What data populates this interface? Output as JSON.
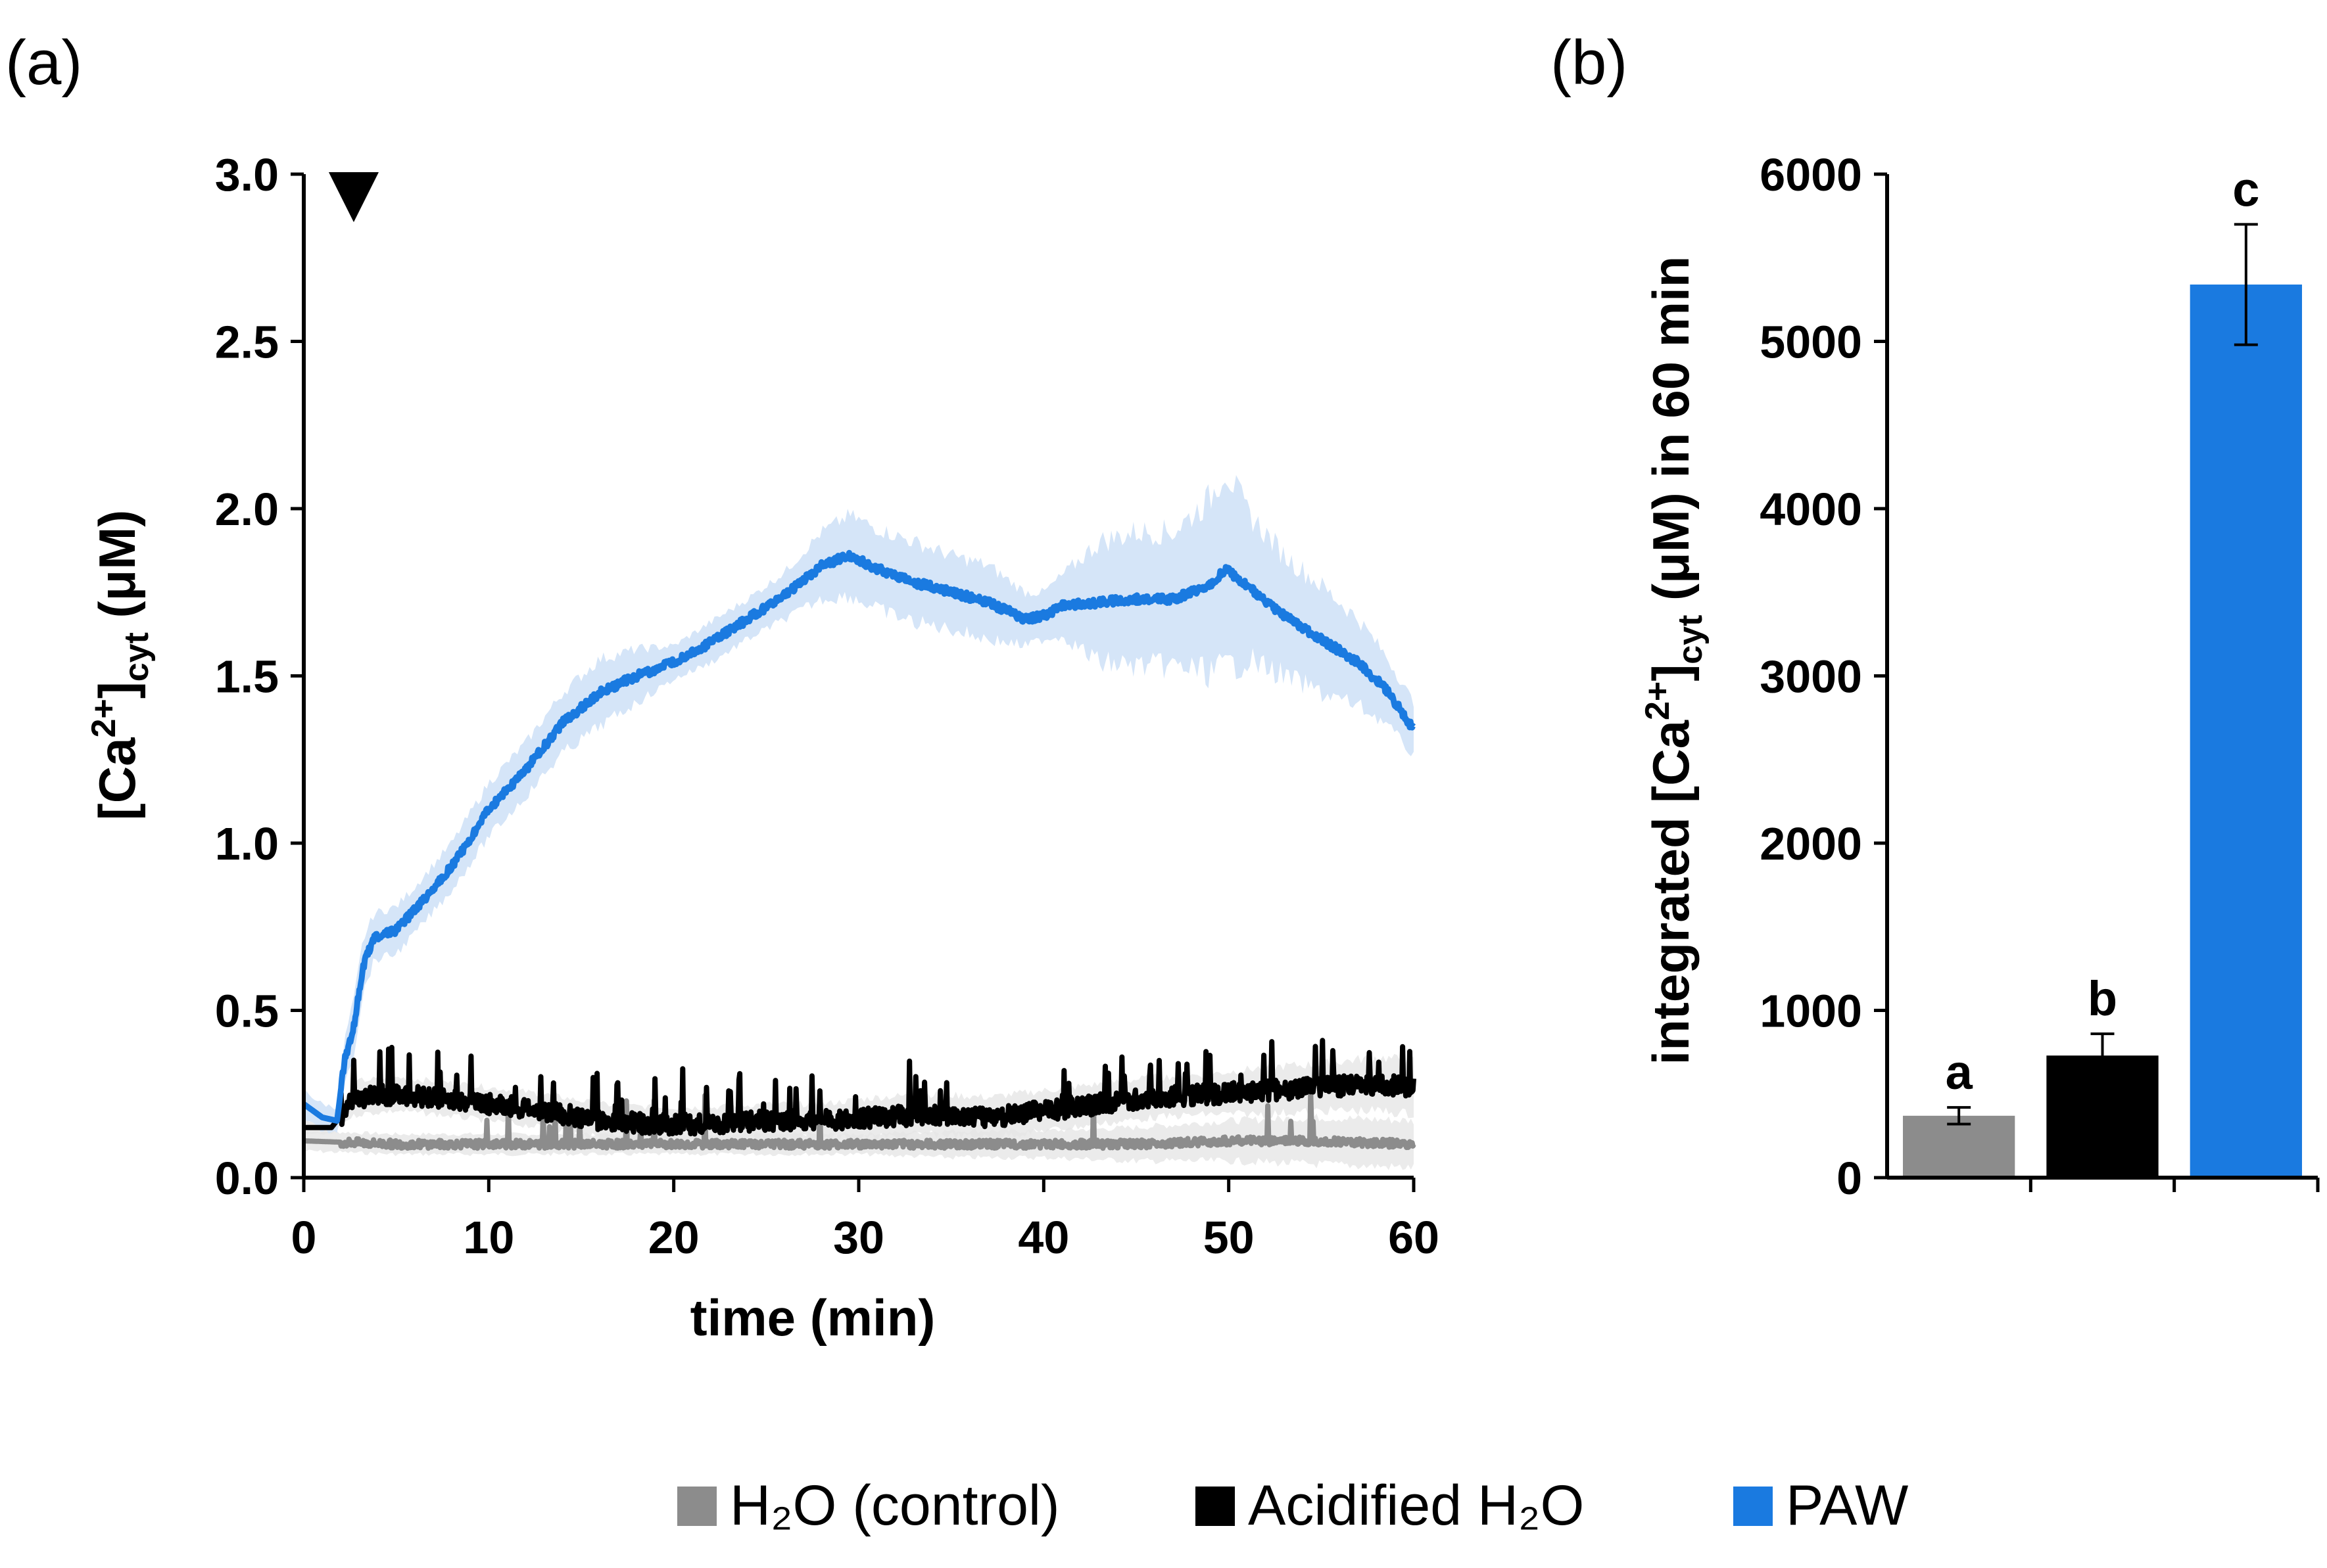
{
  "colors": {
    "control": "#8c8c8c",
    "acidified": "#000000",
    "paw": "#1a7ae0",
    "paw_band": "#d5e5f8",
    "control_band": "#e6e6e6",
    "axis": "#000000"
  },
  "legend": {
    "control_label": "H₂O (control)",
    "acidified_label": "Acidified H₂O",
    "paw_label": "PAW"
  },
  "chart_data": [
    {
      "panel": "(a)",
      "type": "line",
      "title": "",
      "xlabel": "time (min)",
      "ylabel": "[Ca²⁺]cyt (μM)",
      "ylabel_main": "[Ca",
      "ylabel_sup": "2+",
      "ylabel_mid": "]",
      "ylabel_sub": "cyt",
      "ylabel_unit": " (μM)",
      "xlim": [
        0,
        60
      ],
      "ylim": [
        0,
        3.0
      ],
      "xticks": [
        0,
        10,
        20,
        30,
        40,
        50,
        60
      ],
      "yticks": [
        "0.0",
        "0.5",
        "1.0",
        "1.5",
        "2.0",
        "2.5",
        "3.0"
      ],
      "annotation": "▼ treatment applied at ~2.7 min",
      "treatment_time": 2.7,
      "series": [
        {
          "name": "PAW",
          "x": [
            0,
            1,
            1.8,
            2.2,
            2.7,
            3.2,
            3.8,
            5,
            6,
            8,
            10,
            12,
            14,
            16,
            18,
            20,
            22,
            24,
            26,
            28,
            29.5,
            31,
            33,
            35,
            37,
            39,
            40,
            41,
            43,
            45,
            47,
            49,
            49.8,
            51,
            53,
            55,
            57,
            58.5,
            60
          ],
          "values": [
            0.22,
            0.18,
            0.17,
            0.35,
            0.45,
            0.63,
            0.72,
            0.74,
            0.8,
            0.93,
            1.1,
            1.22,
            1.36,
            1.45,
            1.5,
            1.54,
            1.6,
            1.67,
            1.74,
            1.83,
            1.86,
            1.82,
            1.78,
            1.75,
            1.72,
            1.67,
            1.68,
            1.71,
            1.72,
            1.73,
            1.73,
            1.77,
            1.82,
            1.77,
            1.68,
            1.61,
            1.54,
            1.46,
            1.34
          ],
          "band": [
            0.04,
            0.04,
            0.04,
            0.06,
            0.08,
            0.08,
            0.07,
            0.07,
            0.07,
            0.07,
            0.08,
            0.08,
            0.09,
            0.1,
            0.08,
            0.05,
            0.06,
            0.06,
            0.07,
            0.1,
            0.12,
            0.12,
            0.12,
            0.11,
            0.11,
            0.08,
            0.07,
            0.09,
            0.18,
            0.2,
            0.2,
            0.26,
            0.3,
            0.22,
            0.18,
            0.16,
            0.13,
            0.1,
            0.08
          ]
        },
        {
          "name": "Acidified H₂O",
          "x": [
            0,
            1.5,
            2.5,
            3,
            5,
            7,
            10,
            13,
            16,
            19,
            22,
            25,
            28,
            31,
            34,
            37,
            40,
            43,
            46,
            49,
            52,
            55,
            58,
            60
          ],
          "values": [
            0.15,
            0.15,
            0.22,
            0.24,
            0.25,
            0.24,
            0.22,
            0.2,
            0.17,
            0.16,
            0.16,
            0.17,
            0.17,
            0.18,
            0.19,
            0.18,
            0.2,
            0.22,
            0.24,
            0.25,
            0.26,
            0.27,
            0.28,
            0.27
          ],
          "band": [
            0.02,
            0.02,
            0.04,
            0.05,
            0.05,
            0.05,
            0.05,
            0.05,
            0.05,
            0.05,
            0.05,
            0.05,
            0.05,
            0.06,
            0.06,
            0.06,
            0.06,
            0.06,
            0.06,
            0.06,
            0.07,
            0.07,
            0.08,
            0.08
          ]
        },
        {
          "name": "H₂O (control)",
          "x": [
            0,
            5,
            10,
            15,
            20,
            25,
            30,
            35,
            40,
            45,
            50,
            55,
            60
          ],
          "values": [
            0.11,
            0.1,
            0.1,
            0.1,
            0.1,
            0.1,
            0.1,
            0.1,
            0.1,
            0.1,
            0.11,
            0.11,
            0.1
          ],
          "band": [
            0.03,
            0.03,
            0.03,
            0.03,
            0.03,
            0.03,
            0.03,
            0.04,
            0.04,
            0.05,
            0.06,
            0.07,
            0.07
          ]
        }
      ]
    },
    {
      "panel": "(b)",
      "type": "bar",
      "title": "",
      "xlabel": "",
      "ylabel": "integrated [Ca²⁺]cyt (μM) in 60 min",
      "ylabel_main": "integrated [Ca",
      "ylabel_sup": "2+",
      "ylabel_mid": "]",
      "ylabel_sub": "cyt",
      "ylabel_unit": " (μM) in 60 min",
      "ylim": [
        0,
        6000
      ],
      "yticks": [
        "0",
        "1000",
        "2000",
        "3000",
        "4000",
        "5000",
        "6000"
      ],
      "categories": [
        "H₂O (control)",
        "Acidified H₂O",
        "PAW"
      ],
      "values": [
        370,
        730,
        5340
      ],
      "errors": [
        50,
        130,
        360
      ],
      "significance": [
        "a",
        "b",
        "c"
      ]
    }
  ]
}
